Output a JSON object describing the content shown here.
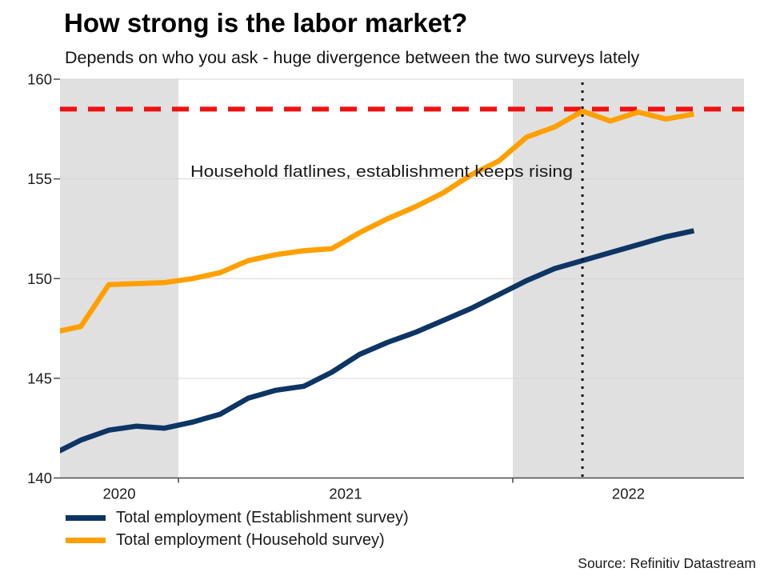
{
  "header": {
    "title": "How strong is the labor market?",
    "subtitle": "Depends on who you ask - huge divergence between the two surveys lately"
  },
  "chart_data": {
    "type": "line",
    "x_months": [
      "2020-08",
      "2020-09",
      "2020-10",
      "2020-11",
      "2020-12",
      "2021-01",
      "2021-02",
      "2021-03",
      "2021-04",
      "2021-05",
      "2021-06",
      "2021-07",
      "2021-08",
      "2021-09",
      "2021-10",
      "2021-11",
      "2021-12",
      "2022-01",
      "2022-02",
      "2022-03",
      "2022-04",
      "2022-05",
      "2022-06",
      "2022-07"
    ],
    "series": [
      {
        "name": "Total employment (Establishment survey)",
        "color": "#0D3565",
        "values": [
          141.2,
          141.9,
          142.4,
          142.6,
          142.5,
          142.8,
          143.2,
          144.0,
          144.4,
          144.6,
          145.3,
          146.2,
          146.8,
          147.3,
          147.9,
          148.5,
          149.2,
          149.9,
          150.5,
          150.9,
          151.3,
          151.7,
          152.1,
          152.4
        ]
      },
      {
        "name": "Total employment (Household survey)",
        "color": "#FFA000",
        "values": [
          147.3,
          147.6,
          149.7,
          149.75,
          149.8,
          150.0,
          150.3,
          150.9,
          151.2,
          151.4,
          151.5,
          152.3,
          153.0,
          153.6,
          154.3,
          155.2,
          155.9,
          157.1,
          157.6,
          158.4,
          157.9,
          158.35,
          158.0,
          158.25
        ]
      }
    ],
    "ylim": [
      140,
      160
    ],
    "yticks": [
      140,
      145,
      150,
      155,
      160
    ],
    "year_labels": [
      "2020",
      "2021",
      "2022"
    ],
    "shaded_year_bands": [
      "2020",
      "2022"
    ],
    "band_color": "#E0E0E0",
    "grid": "horizontal",
    "reference_hline": {
      "value": 158.5,
      "color": "#EE1111",
      "style": "dashed"
    },
    "event_vline": {
      "month": "2022-03",
      "color": "#111111",
      "style": "dotted"
    },
    "annotation": {
      "text": "Household flatlines, establishment keeps rising"
    }
  },
  "legend": {
    "items": [
      {
        "label": "Total employment (Establishment survey)",
        "color": "#0D3565"
      },
      {
        "label": "Total employment (Household survey)",
        "color": "#FFA000"
      }
    ]
  },
  "footer": {
    "source": "Source: Refinitiv Datastream"
  }
}
